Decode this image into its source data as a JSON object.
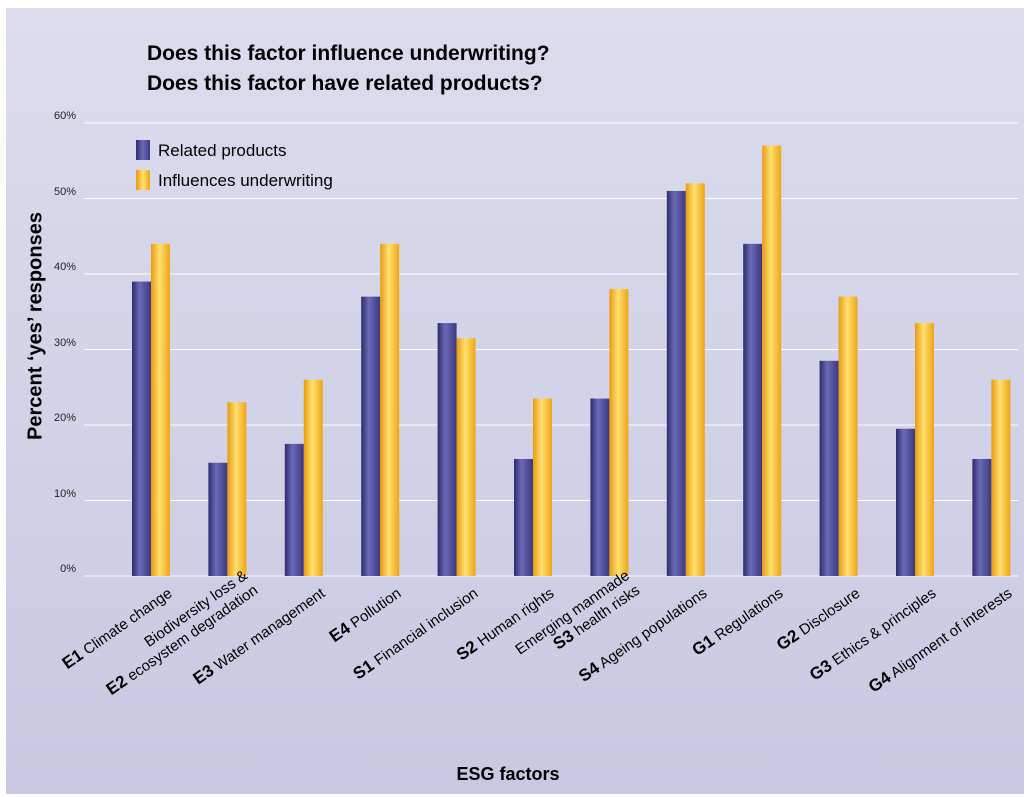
{
  "chart_data": {
    "type": "bar",
    "title": "Does this factor influence underwriting?",
    "subtitle": "Does this factor have related products?",
    "xlabel": "ESG factors",
    "ylabel": "Percent ‘yes’ responses",
    "ylim": [
      0,
      60
    ],
    "yticks": [
      "0%",
      "10%",
      "20%",
      "30%",
      "40%",
      "50%",
      "60%"
    ],
    "grid": true,
    "legend_position": "top-left",
    "categories": [
      {
        "code": "E1",
        "name": "Climate change"
      },
      {
        "code": "E2",
        "name": "Biodiversity loss &\necosystem degradation"
      },
      {
        "code": "E3",
        "name": "Water management"
      },
      {
        "code": "E4",
        "name": "Pollution"
      },
      {
        "code": "S1",
        "name": "Financial inclusion"
      },
      {
        "code": "S2",
        "name": "Human rights"
      },
      {
        "code": "S3",
        "name": "Emerging manmade\nhealth risks"
      },
      {
        "code": "S4",
        "name": "Ageing populations"
      },
      {
        "code": "G1",
        "name": "Regulations"
      },
      {
        "code": "G2",
        "name": "Disclosure"
      },
      {
        "code": "G3",
        "name": "Ethics & principles"
      },
      {
        "code": "G4",
        "name": "Alignment of interests"
      }
    ],
    "series": [
      {
        "name": "Related products",
        "color": "#4a4896",
        "values": [
          39,
          15,
          17.5,
          37,
          33.5,
          15.5,
          23.5,
          51,
          44,
          28.5,
          19.5,
          15.5
        ]
      },
      {
        "name": "Influences underwriting",
        "color": "#f7b21c",
        "values": [
          44,
          23,
          26,
          44,
          31.5,
          23.5,
          38,
          52,
          57,
          37,
          33.5,
          26
        ]
      }
    ]
  }
}
